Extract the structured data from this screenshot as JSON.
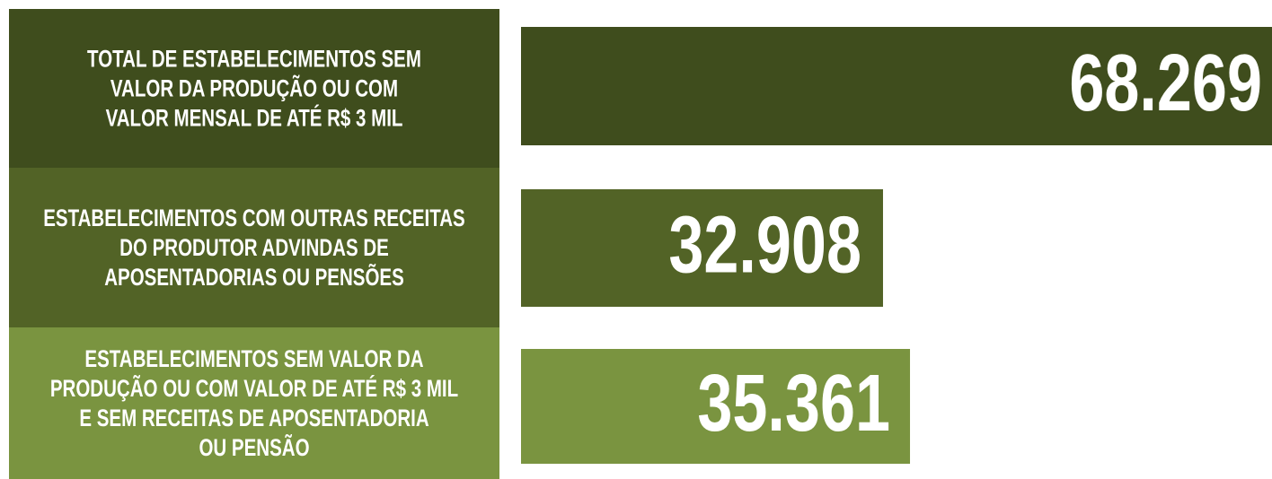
{
  "chart_data": {
    "type": "bar",
    "categories": [
      [
        "TOTAL DE ESTABELECIMENTOS SEM",
        "VALOR DA PRODUÇÃO OU COM",
        "VALOR MENSAL DE ATÉ R$ 3 MIL"
      ],
      [
        "ESTABELECIMENTOS COM OUTRAS RECEITAS",
        "DO PRODUTOR ADVINDAS DE",
        "APOSENTADORIAS OU PENSÕES"
      ],
      [
        "ESTABELECIMENTOS SEM VALOR DA",
        "PRODUÇÃO OU COM VALOR DE ATÉ R$ 3 MIL",
        "E SEM RECEITAS DE APOSENTADORIA",
        "OU PENSÃO"
      ]
    ],
    "values": [
      68269,
      32908,
      35361
    ],
    "value_labels": [
      "68.269",
      "32.908",
      "35.361"
    ],
    "colors": [
      "#3f4d1d",
      "#526326",
      "#7a9440"
    ]
  }
}
